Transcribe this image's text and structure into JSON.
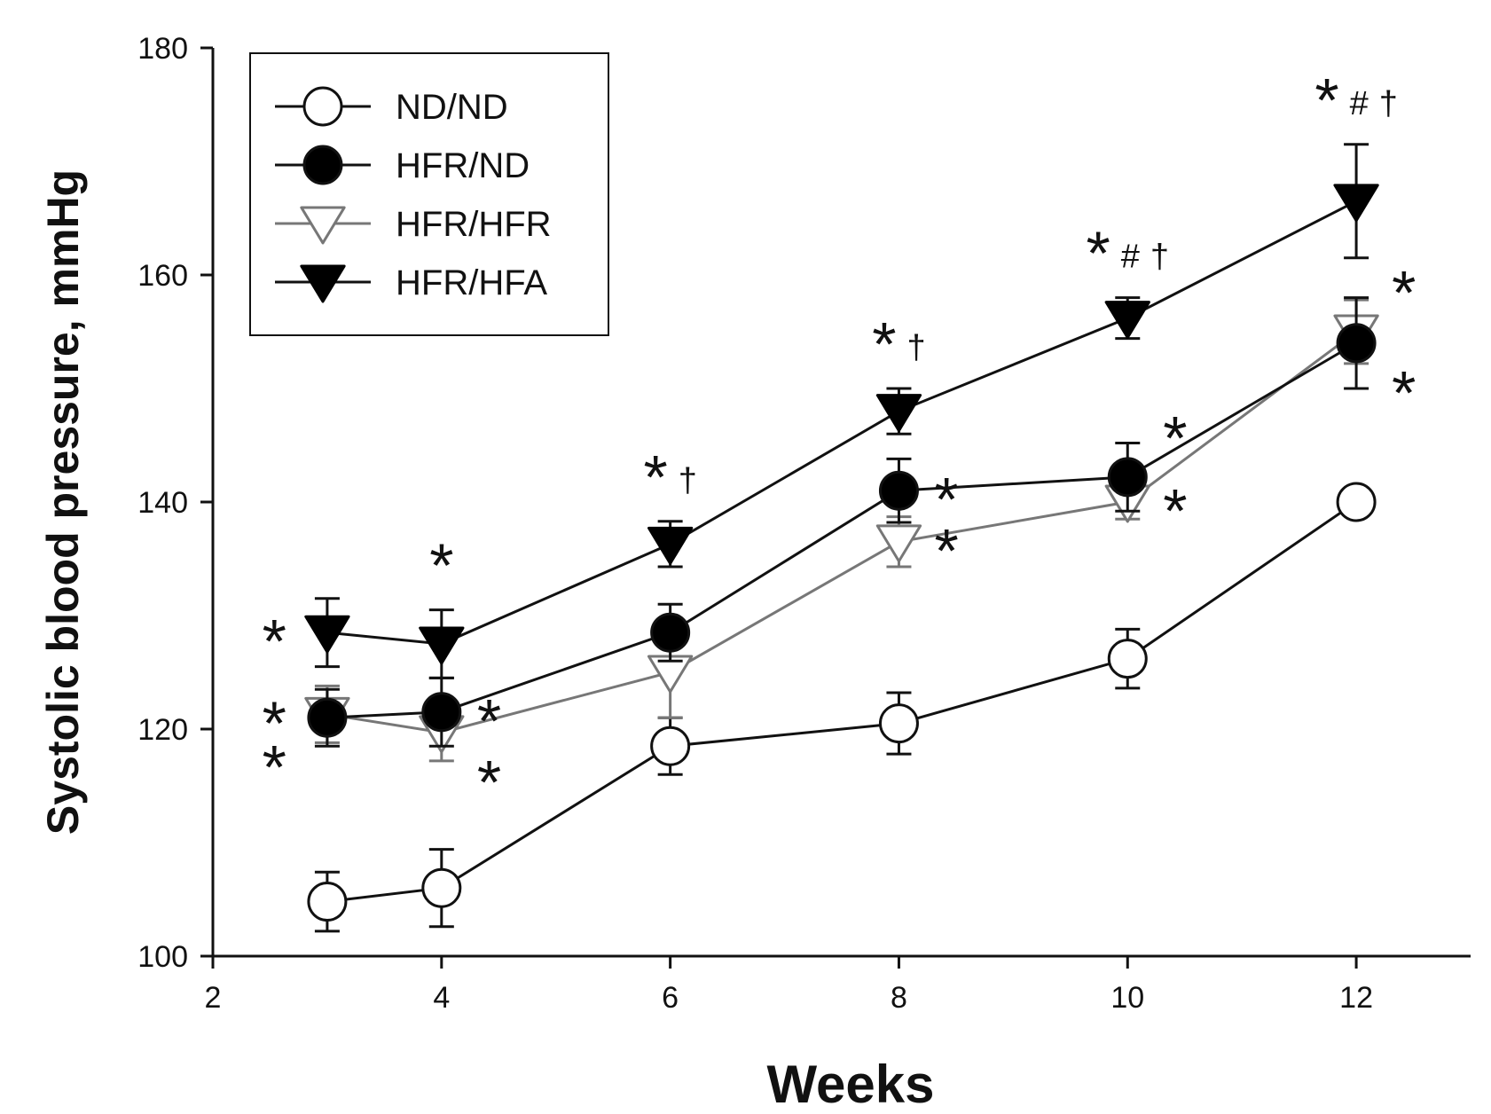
{
  "chart_data": {
    "type": "line",
    "xlabel": "Weeks",
    "ylabel": "Systolic blood pressure, mmHg",
    "xlim": [
      2,
      13
    ],
    "ylim": [
      100,
      180
    ],
    "xticks": [
      2,
      4,
      6,
      8,
      10,
      12
    ],
    "yticks": [
      100,
      120,
      140,
      160,
      180
    ],
    "x": [
      3,
      4,
      6,
      8,
      10,
      12
    ],
    "legend_position": "top-left",
    "series": [
      {
        "name": "ND/ND",
        "marker": "circle-open",
        "line_color": "#111111",
        "values": [
          104.8,
          106.0,
          118.5,
          120.5,
          126.2,
          140.0
        ],
        "errors": [
          2.6,
          3.4,
          2.5,
          2.7,
          2.6,
          0.0
        ]
      },
      {
        "name": "HFR/ND",
        "marker": "circle-filled",
        "line_color": "#111111",
        "values": [
          121.0,
          121.5,
          128.5,
          141.0,
          142.2,
          154.0
        ],
        "errors": [
          2.5,
          3.0,
          2.5,
          2.8,
          3.0,
          4.0
        ]
      },
      {
        "name": "HFR/HFR",
        "marker": "triangle-down-open",
        "line_color": "#777777",
        "values": [
          121.3,
          119.7,
          125.0,
          136.5,
          140.0,
          155.0
        ],
        "errors": [
          2.5,
          2.5,
          4.0,
          2.2,
          1.5,
          2.8
        ]
      },
      {
        "name": "HFR/HFA",
        "marker": "triangle-down-filled",
        "line_color": "#111111",
        "values": [
          128.5,
          127.5,
          136.3,
          148.0,
          156.2,
          166.5
        ],
        "errors": [
          3.0,
          3.0,
          2.0,
          2.0,
          1.8,
          5.0
        ]
      }
    ],
    "annotations": [
      {
        "text": "*",
        "x": 3,
        "series": "HFR/HFA",
        "side": "left"
      },
      {
        "text": "*",
        "x": 3,
        "series": "HFR/HFR",
        "side": "left"
      },
      {
        "text": "*",
        "x": 3,
        "series": "HFR/ND",
        "side": "left-below"
      },
      {
        "text": "*",
        "x": 4,
        "series": "HFR/HFA",
        "side": "above"
      },
      {
        "text": "*",
        "x": 4,
        "series": "HFR/ND",
        "side": "right"
      },
      {
        "text": "*",
        "x": 4,
        "series": "HFR/HFR",
        "side": "right-below"
      },
      {
        "text": "*†",
        "x": 6,
        "series": "HFR/HFA",
        "side": "above"
      },
      {
        "text": "*†",
        "x": 8,
        "series": "HFR/HFA",
        "side": "above"
      },
      {
        "text": "*",
        "x": 8,
        "series": "HFR/ND",
        "side": "right"
      },
      {
        "text": "*",
        "x": 8,
        "series": "HFR/HFR",
        "side": "right"
      },
      {
        "text": "*#†",
        "x": 10,
        "series": "HFR/HFA",
        "side": "above"
      },
      {
        "text": "*",
        "x": 10,
        "series": "HFR/ND",
        "side": "right-above"
      },
      {
        "text": "*",
        "x": 10,
        "series": "HFR/HFR",
        "side": "right"
      },
      {
        "text": "*#†",
        "x": 12,
        "series": "HFR/HFA",
        "side": "above"
      },
      {
        "text": "*",
        "x": 12,
        "series": "HFR/HFR",
        "side": "right-above"
      },
      {
        "text": "*",
        "x": 12,
        "series": "HFR/ND",
        "side": "right-below"
      }
    ]
  }
}
